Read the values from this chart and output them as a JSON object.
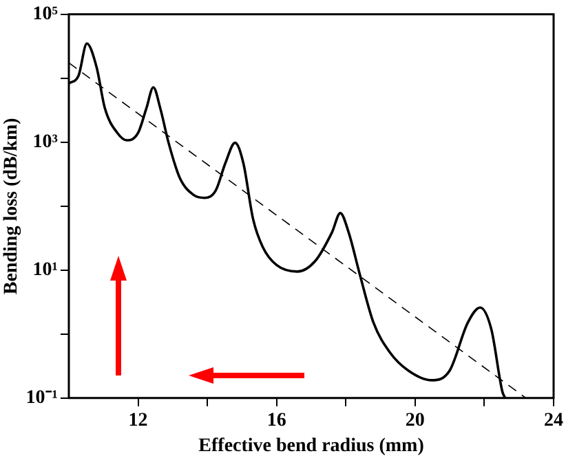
{
  "chart_data": {
    "type": "line",
    "xlabel": "Effective bend radius (mm)",
    "ylabel": "Bending loss (dB/km)",
    "log": "y",
    "grid": false,
    "legend": false,
    "marker": "none",
    "xlim": [
      10,
      24
    ],
    "ylim": [
      0.1,
      100000
    ],
    "xticks": [
      12,
      {
        "value": 14,
        "label": null
      },
      16,
      {
        "value": 18,
        "label": null
      },
      20,
      {
        "value": 22,
        "label": null
      },
      24
    ],
    "yticks": [
      {
        "value": 0.1,
        "label": "10⁻¹"
      },
      {
        "value": 1,
        "label": null
      },
      {
        "value": 10,
        "label": "10¹"
      },
      {
        "value": 100,
        "label": null
      },
      {
        "value": 1000,
        "label": "10³"
      },
      {
        "value": 10000,
        "label": null
      },
      {
        "value": 100000,
        "label": "10⁵"
      }
    ],
    "series": [
      {
        "color": "#000000",
        "line_style": "solid",
        "x": [
          10,
          10.28,
          10.52,
          10.8,
          11.04,
          11.4,
          11.68,
          12.0,
          12.24,
          12.44,
          12.64,
          12.88,
          13.2,
          13.6,
          13.92,
          14.24,
          14.52,
          14.8,
          15.04,
          15.32,
          15.6,
          16.0,
          16.6,
          17.12,
          17.6,
          17.84,
          18.08,
          18.4,
          18.8,
          19.28,
          19.8,
          20.48,
          21.0,
          21.52,
          21.88,
          22.2,
          22.52,
          22.6
        ],
        "values": [
          8300,
          11000,
          35000,
          15000,
          3400,
          1400,
          1070,
          1400,
          3400,
          7200,
          3400,
          980,
          280,
          150,
          135,
          175,
          470,
          980,
          470,
          63,
          23,
          12,
          9.5,
          14,
          39,
          78,
          39,
          8.7,
          1.5,
          0.51,
          0.27,
          0.19,
          0.27,
          1.5,
          2.6,
          1.2,
          0.126,
          0.1
        ]
      },
      {
        "color": "#000000",
        "line_style": "dashed",
        "x": [
          10,
          23.2
        ],
        "values": [
          17400,
          0.1
        ]
      }
    ]
  }
}
